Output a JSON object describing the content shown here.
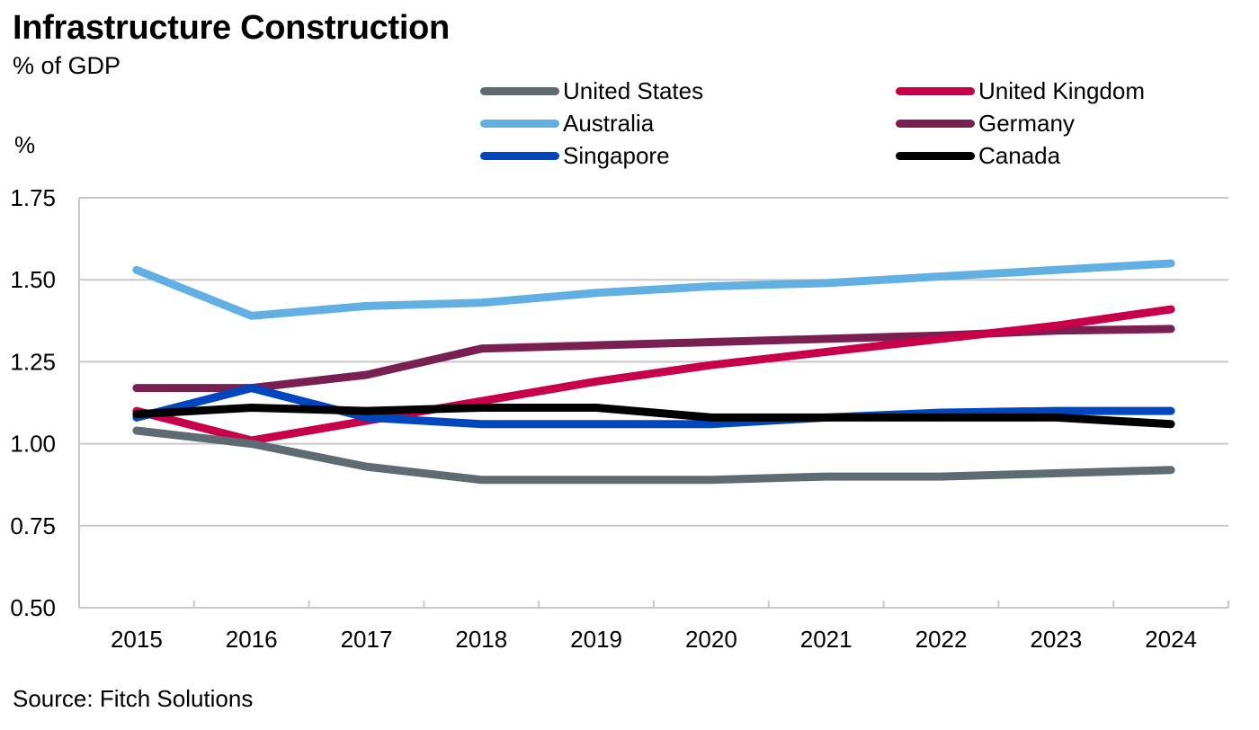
{
  "chart_data": {
    "type": "line",
    "title": "Infrastructure Construction",
    "subtitle": "% of GDP",
    "ylabel": "%",
    "xlabel": "",
    "source": "Source: Fitch Solutions",
    "categories": [
      "2015",
      "2016",
      "2017",
      "2018",
      "2019",
      "2020",
      "2021",
      "2022",
      "2023",
      "2024"
    ],
    "ylim": [
      0.5,
      1.75
    ],
    "yticks": [
      "0.50",
      "0.75",
      "1.00",
      "1.25",
      "1.50",
      "1.75"
    ],
    "ytick_values": [
      0.5,
      0.75,
      1.0,
      1.25,
      1.5,
      1.75
    ],
    "grid": true,
    "legend_position": "top-right",
    "series": [
      {
        "name": "United States",
        "color": "#5f6b73",
        "values": [
          1.04,
          1.0,
          0.93,
          0.89,
          0.89,
          0.89,
          0.9,
          0.9,
          0.91,
          0.92
        ]
      },
      {
        "name": "United Kingdom",
        "color": "#c8004a",
        "values": [
          1.1,
          1.01,
          1.07,
          1.13,
          1.19,
          1.24,
          1.28,
          1.32,
          1.36,
          1.41
        ]
      },
      {
        "name": "Australia",
        "color": "#62b0e3",
        "values": [
          1.53,
          1.39,
          1.42,
          1.43,
          1.46,
          1.48,
          1.49,
          1.51,
          1.53,
          1.55
        ]
      },
      {
        "name": "Germany",
        "color": "#7a1f52",
        "values": [
          1.17,
          1.17,
          1.21,
          1.29,
          1.3,
          1.31,
          1.32,
          1.33,
          1.345,
          1.35
        ]
      },
      {
        "name": "Singapore",
        "color": "#0047bf",
        "values": [
          1.08,
          1.17,
          1.08,
          1.06,
          1.06,
          1.06,
          1.08,
          1.095,
          1.1,
          1.1
        ]
      },
      {
        "name": "Canada",
        "color": "#000000",
        "values": [
          1.09,
          1.11,
          1.1,
          1.11,
          1.11,
          1.08,
          1.08,
          1.08,
          1.08,
          1.06
        ]
      }
    ]
  }
}
